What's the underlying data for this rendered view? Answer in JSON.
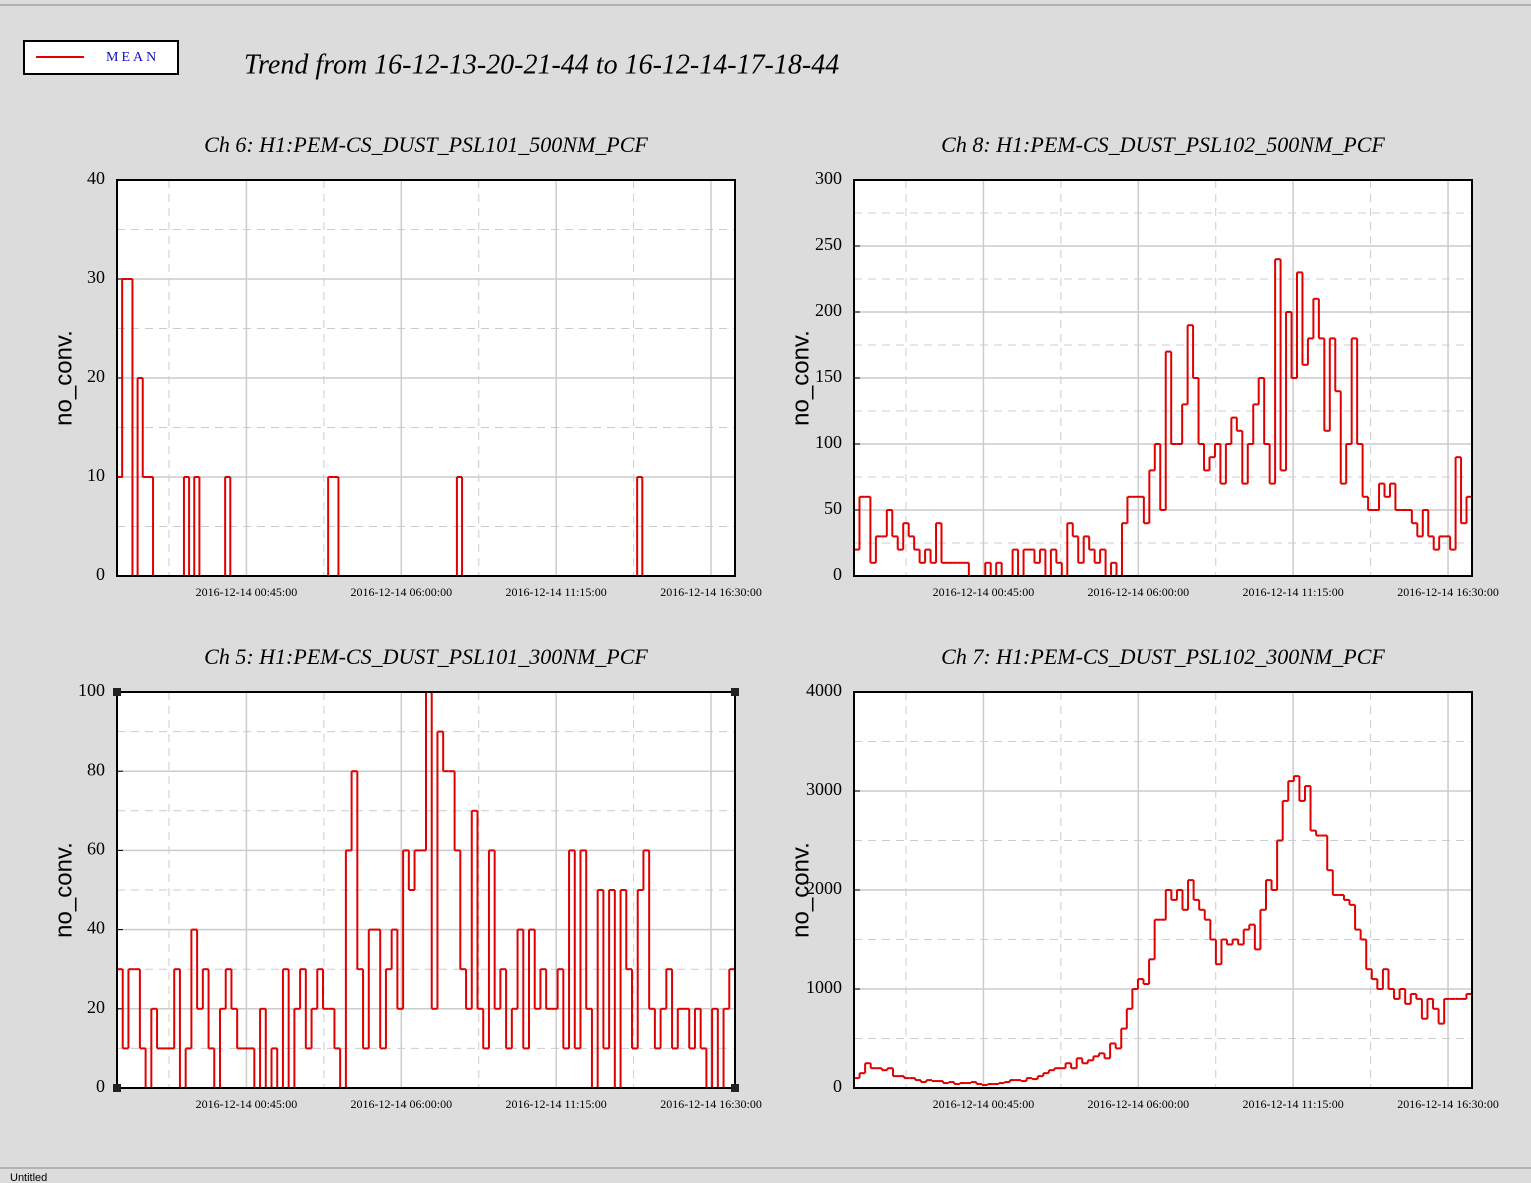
{
  "title": "Trend from 16-12-13-20-21-44 to 16-12-14-17-18-44",
  "legend": "MEAN",
  "status": "Untitled",
  "chart_data": [
    {
      "type": "line",
      "step": true,
      "title": "Ch 6: H1:PEM-CS_DUST_PSL101_500NM_PCF",
      "ylabel": "no_conv.",
      "color": "#e00000",
      "xlim": [
        "2016-12-13 20:21:44",
        "2016-12-14 17:18:44"
      ],
      "xticks": [
        "2016-12-14 00:45:00",
        "2016-12-14 06:00:00",
        "2016-12-14 11:15:00",
        "2016-12-14 16:30:00"
      ],
      "ylim": [
        0,
        40
      ],
      "yticks": [
        0,
        10,
        20,
        30,
        40
      ],
      "grid": true,
      "values": [
        10,
        30,
        30,
        0,
        20,
        10,
        10,
        0,
        0,
        0,
        0,
        0,
        0,
        10,
        0,
        10,
        0,
        0,
        0,
        0,
        0,
        10,
        0,
        0,
        0,
        0,
        0,
        0,
        0,
        0,
        0,
        0,
        0,
        0,
        0,
        0,
        0,
        0,
        0,
        0,
        0,
        10,
        10,
        0,
        0,
        0,
        0,
        0,
        0,
        0,
        0,
        0,
        0,
        0,
        0,
        0,
        0,
        0,
        0,
        0,
        0,
        0,
        0,
        0,
        0,
        0,
        10,
        0,
        0,
        0,
        0,
        0,
        0,
        0,
        0,
        0,
        0,
        0,
        0,
        0,
        0,
        0,
        0,
        0,
        0,
        0,
        0,
        0,
        0,
        0,
        0,
        0,
        0,
        0,
        0,
        0,
        0,
        0,
        0,
        0,
        0,
        10,
        0,
        0,
        0,
        0,
        0,
        0,
        0,
        0,
        0,
        0,
        0,
        0,
        0,
        0,
        0,
        0,
        0,
        0
      ]
    },
    {
      "type": "line",
      "step": true,
      "title": "Ch 8: H1:PEM-CS_DUST_PSL102_500NM_PCF",
      "ylabel": "no_conv.",
      "color": "#e00000",
      "xlim": [
        "2016-12-13 20:21:44",
        "2016-12-14 17:18:44"
      ],
      "xticks": [
        "2016-12-14 00:45:00",
        "2016-12-14 06:00:00",
        "2016-12-14 11:15:00",
        "2016-12-14 16:30:00"
      ],
      "ylim": [
        0,
        300
      ],
      "yticks": [
        0,
        50,
        100,
        150,
        200,
        250,
        300
      ],
      "grid": true,
      "values": [
        20,
        60,
        60,
        10,
        30,
        30,
        50,
        30,
        20,
        40,
        30,
        20,
        10,
        20,
        10,
        40,
        10,
        10,
        10,
        10,
        10,
        0,
        0,
        0,
        10,
        0,
        10,
        0,
        0,
        20,
        0,
        20,
        20,
        10,
        20,
        0,
        20,
        10,
        0,
        40,
        30,
        10,
        30,
        20,
        10,
        20,
        0,
        10,
        0,
        40,
        60,
        60,
        60,
        40,
        80,
        100,
        50,
        170,
        100,
        100,
        130,
        190,
        150,
        100,
        80,
        90,
        100,
        70,
        100,
        120,
        110,
        70,
        100,
        130,
        150,
        100,
        70,
        240,
        80,
        200,
        150,
        230,
        160,
        180,
        210,
        180,
        110,
        180,
        140,
        70,
        100,
        180,
        100,
        60,
        50,
        50,
        70,
        60,
        70,
        50,
        50,
        50,
        40,
        30,
        50,
        30,
        20,
        30,
        30,
        20,
        90,
        40,
        60
      ]
    },
    {
      "type": "line",
      "step": true,
      "title": "Ch 5: H1:PEM-CS_DUST_PSL101_300NM_PCF",
      "ylabel": "no_conv.",
      "color": "#e00000",
      "xlim": [
        "2016-12-13 20:21:44",
        "2016-12-14 17:18:44"
      ],
      "xticks": [
        "2016-12-14 00:45:00",
        "2016-12-14 06:00:00",
        "2016-12-14 11:15:00",
        "2016-12-14 16:30:00"
      ],
      "ylim": [
        0,
        100
      ],
      "yticks": [
        0,
        20,
        40,
        60,
        80,
        100
      ],
      "grid": true,
      "values": [
        30,
        10,
        30,
        30,
        10,
        0,
        20,
        10,
        10,
        10,
        30,
        0,
        10,
        40,
        20,
        30,
        10,
        0,
        20,
        30,
        20,
        10,
        10,
        10,
        0,
        20,
        0,
        10,
        0,
        30,
        0,
        20,
        30,
        10,
        20,
        30,
        20,
        20,
        10,
        0,
        60,
        80,
        30,
        10,
        40,
        40,
        10,
        30,
        40,
        20,
        60,
        50,
        60,
        60,
        100,
        20,
        90,
        80,
        80,
        60,
        30,
        20,
        70,
        20,
        10,
        60,
        20,
        30,
        10,
        20,
        40,
        10,
        40,
        20,
        30,
        20,
        20,
        30,
        10,
        60,
        10,
        60,
        20,
        0,
        50,
        10,
        50,
        0,
        50,
        30,
        10,
        50,
        60,
        20,
        10,
        20,
        30,
        10,
        20,
        20,
        10,
        20,
        10,
        0,
        20,
        0,
        20,
        30
      ]
    },
    {
      "type": "line",
      "step": true,
      "title": "Ch 7: H1:PEM-CS_DUST_PSL102_300NM_PCF",
      "ylabel": "no_conv.",
      "color": "#e00000",
      "xlim": [
        "2016-12-13 20:21:44",
        "2016-12-14 17:18:44"
      ],
      "xticks": [
        "2016-12-14 00:45:00",
        "2016-12-14 06:00:00",
        "2016-12-14 11:15:00",
        "2016-12-14 16:30:00"
      ],
      "ylim": [
        0,
        4000
      ],
      "yticks": [
        0,
        1000,
        2000,
        3000,
        4000
      ],
      "grid": true,
      "values": [
        100,
        150,
        250,
        200,
        200,
        180,
        200,
        120,
        120,
        100,
        100,
        80,
        60,
        80,
        70,
        70,
        50,
        60,
        40,
        50,
        50,
        60,
        40,
        30,
        40,
        40,
        50,
        60,
        80,
        80,
        70,
        100,
        90,
        120,
        150,
        180,
        200,
        200,
        250,
        200,
        300,
        250,
        280,
        320,
        350,
        300,
        450,
        400,
        600,
        800,
        1000,
        1100,
        1050,
        1300,
        1700,
        1700,
        2000,
        1900,
        2000,
        1800,
        2100,
        1900,
        1800,
        1700,
        1500,
        1250,
        1500,
        1450,
        1500,
        1450,
        1600,
        1650,
        1400,
        1800,
        2100,
        2000,
        2500,
        2900,
        3100,
        3150,
        2900,
        3050,
        2600,
        2550,
        2550,
        2200,
        1950,
        1950,
        1900,
        1850,
        1600,
        1500,
        1200,
        1100,
        1000,
        1200,
        1000,
        900,
        1000,
        850,
        950,
        900,
        700,
        900,
        800,
        650,
        900,
        900,
        900,
        900,
        950
      ]
    }
  ]
}
